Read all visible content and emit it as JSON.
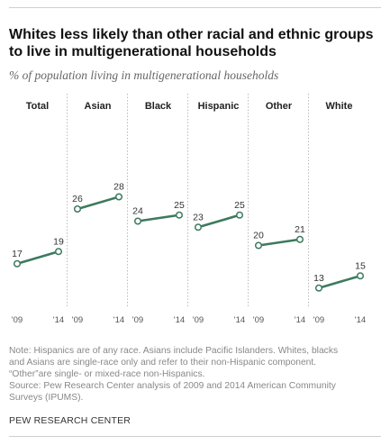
{
  "title": "Whites less likely than other racial and ethnic groups to live in multigenerational households",
  "subtitle": "% of population living in multigenerational households",
  "chart_data": {
    "type": "line",
    "ylim": [
      10,
      30
    ],
    "line_color": "#3d7a5e",
    "divider_color": "#bbbbbb",
    "x_labels": [
      "'09",
      "'14"
    ],
    "panels": [
      {
        "name": "Total",
        "values": [
          17,
          19
        ]
      },
      {
        "name": "Asian",
        "values": [
          26,
          28
        ]
      },
      {
        "name": "Black",
        "values": [
          24,
          25
        ]
      },
      {
        "name": "Hispanic",
        "values": [
          23,
          25
        ]
      },
      {
        "name": "Other",
        "values": [
          20,
          21
        ]
      },
      {
        "name": "White",
        "values": [
          13,
          15
        ]
      }
    ]
  },
  "notes": [
    "Note: Hispanics are of any race. Asians include Pacific Islanders. Whites, blacks",
    "and Asians are single-race only and refer to their non-Hispanic component.",
    "“Other”are single- or mixed-race non-Hispanics.",
    "Source: Pew Research Center analysis of 2009 and 2014 American Community",
    "Surveys (IPUMS)."
  ],
  "brand": "PEW RESEARCH CENTER"
}
